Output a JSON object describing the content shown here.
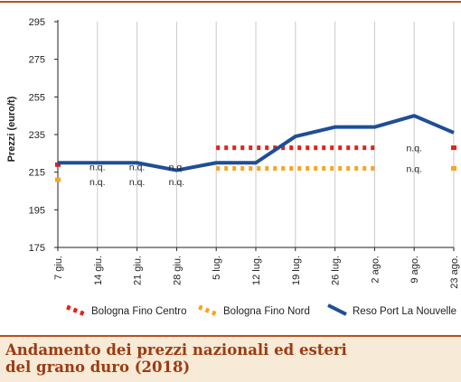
{
  "chart_data": {
    "type": "line",
    "title": "Andamento dei prezzi nazionali ed esteri del grano duro (2018)",
    "title_line1": "Andamento dei prezzi nazionali ed esteri",
    "title_line2": "del grano duro (2018)",
    "ylabel": "Prezzi (euro/t)",
    "xlabel": "",
    "ylim": [
      175,
      295
    ],
    "yticks": [
      175,
      195,
      215,
      235,
      255,
      275,
      295
    ],
    "categories": [
      "7 giu.",
      "14 giu.",
      "21 giu.",
      "28 giu.",
      "5 lug.",
      "12 lug.",
      "19 lug.",
      "26 lug.",
      "2 ago.",
      "9 ago.",
      "23 ago."
    ],
    "grid": "vertical",
    "legend_position": "bottom",
    "colors": {
      "bologna_centro": "#e2231a",
      "bologna_nord": "#f5a623",
      "reso_port": "#1f4e96",
      "footer_bg": "#f7ead6",
      "footer_text": "#9c3b12",
      "frame": "#b5501d"
    },
    "series": [
      {
        "name": "Bologna Fino Centro",
        "style": "dotted",
        "values": [
          219,
          null,
          null,
          null,
          228,
          228,
          228,
          228,
          228,
          null,
          228
        ]
      },
      {
        "name": "Bologna Fino Nord",
        "style": "dotted",
        "values": [
          211,
          null,
          null,
          null,
          217,
          217,
          217,
          217,
          217,
          null,
          217
        ]
      },
      {
        "name": "Reso Port La Nouvelle",
        "style": "solid",
        "values": [
          220,
          220,
          220,
          216,
          220,
          220,
          234,
          239,
          239,
          245,
          236
        ]
      }
    ],
    "annotations": [
      {
        "text": "n.q.",
        "category": "14 giu.",
        "value": 218
      },
      {
        "text": "n.q.",
        "category": "21 giu.",
        "value": 218
      },
      {
        "text": "n.q.",
        "category": "28 giu.",
        "value": 218
      },
      {
        "text": "n.q.",
        "category": "14 giu.",
        "value": 210
      },
      {
        "text": "n.q.",
        "category": "21 giu.",
        "value": 210
      },
      {
        "text": "n.q.",
        "category": "28 giu.",
        "value": 210
      },
      {
        "text": "n.q.",
        "category": "9 ago.",
        "value": 228
      },
      {
        "text": "n.q.",
        "category": "9 ago.",
        "value": 217
      }
    ]
  }
}
